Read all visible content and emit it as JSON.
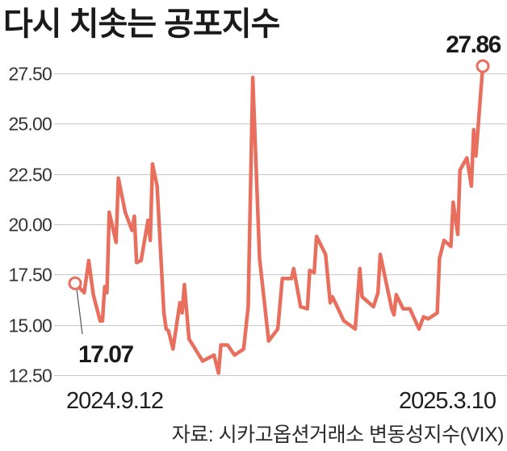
{
  "source": "자료: 시카고옵션거래소 변동성지수(VIX)",
  "colors": {
    "line": "#e86f5e",
    "marker_fill": "#ffffff",
    "grid": "#c9c9c9",
    "leader": "#555555",
    "background": "#ffffff"
  },
  "chart_data": {
    "type": "line",
    "title": "다시 치솟는 공포지수",
    "x_tick_labels": [
      "2024.9.12",
      "2025.3.10"
    ],
    "y_tick_labels": [
      "27.50",
      "25.00",
      "22.50",
      "20.00",
      "17.50",
      "15.00",
      "12.50"
    ],
    "xlim": [
      "2024-09-12",
      "2025-03-10"
    ],
    "ylim": [
      12.5,
      27.5
    ],
    "grid": "horizontal",
    "legend": "none",
    "annotations": [
      {
        "x": "2024-09-12",
        "y": 17.07,
        "label": "17.07",
        "placement": "below"
      },
      {
        "x": "2025-03-10",
        "y": 27.86,
        "label": "27.86",
        "placement": "above"
      }
    ],
    "series": [
      {
        "x": [
          "2024-09-12",
          "2024-09-16",
          "2024-09-18",
          "2024-09-20",
          "2024-09-23",
          "2024-09-24",
          "2024-09-25",
          "2024-09-26",
          "2024-09-27",
          "2024-09-30",
          "2024-10-01",
          "2024-10-04",
          "2024-10-07",
          "2024-10-08",
          "2024-10-09",
          "2024-10-11",
          "2024-10-14",
          "2024-10-15",
          "2024-10-16",
          "2024-10-18",
          "2024-10-21",
          "2024-10-22",
          "2024-10-23",
          "2024-10-25",
          "2024-10-28",
          "2024-10-29",
          "2024-10-30",
          "2024-11-01",
          "2024-11-07",
          "2024-11-12",
          "2024-11-14",
          "2024-11-15",
          "2024-11-18",
          "2024-11-21",
          "2024-11-25",
          "2024-11-27",
          "2024-11-29",
          "2024-12-02",
          "2024-12-06",
          "2024-12-10",
          "2024-12-12",
          "2024-12-16",
          "2024-12-17",
          "2024-12-20",
          "2024-12-23",
          "2024-12-24",
          "2024-12-26",
          "2024-12-27",
          "2024-12-31",
          "2025-01-02",
          "2025-01-03",
          "2025-01-08",
          "2025-01-13",
          "2025-01-15",
          "2025-01-16",
          "2025-01-17",
          "2025-01-21",
          "2025-01-23",
          "2025-01-24",
          "2025-01-29",
          "2025-01-30",
          "2025-01-31",
          "2025-02-03",
          "2025-02-06",
          "2025-02-10",
          "2025-02-12",
          "2025-02-14",
          "2025-02-18",
          "2025-02-19",
          "2025-02-21",
          "2025-02-24",
          "2025-02-25",
          "2025-02-27",
          "2025-02-28",
          "2025-03-03",
          "2025-03-05",
          "2025-03-06",
          "2025-03-07",
          "2025-03-10"
        ],
        "values": [
          17.07,
          16.6,
          18.2,
          16.5,
          15.2,
          15.2,
          16.9,
          16.6,
          20.6,
          19.1,
          22.3,
          20.6,
          19.7,
          20.4,
          18.1,
          18.2,
          20.2,
          19.2,
          23.0,
          21.9,
          15.6,
          14.8,
          14.7,
          13.8,
          16.1,
          15.6,
          17.0,
          14.3,
          13.2,
          13.5,
          12.6,
          14.0,
          14.0,
          13.5,
          13.8,
          15.9,
          27.3,
          18.3,
          14.2,
          14.8,
          17.3,
          17.3,
          17.8,
          15.9,
          15.8,
          17.7,
          17.6,
          19.4,
          18.5,
          16.1,
          16.4,
          15.2,
          14.8,
          17.8,
          16.4,
          16.3,
          15.9,
          16.6,
          18.5,
          15.8,
          15.5,
          16.5,
          15.8,
          15.8,
          14.8,
          15.4,
          15.3,
          15.6,
          18.3,
          19.2,
          18.9,
          21.1,
          19.5,
          22.7,
          23.3,
          21.9,
          24.7,
          23.4,
          27.86
        ]
      }
    ]
  }
}
